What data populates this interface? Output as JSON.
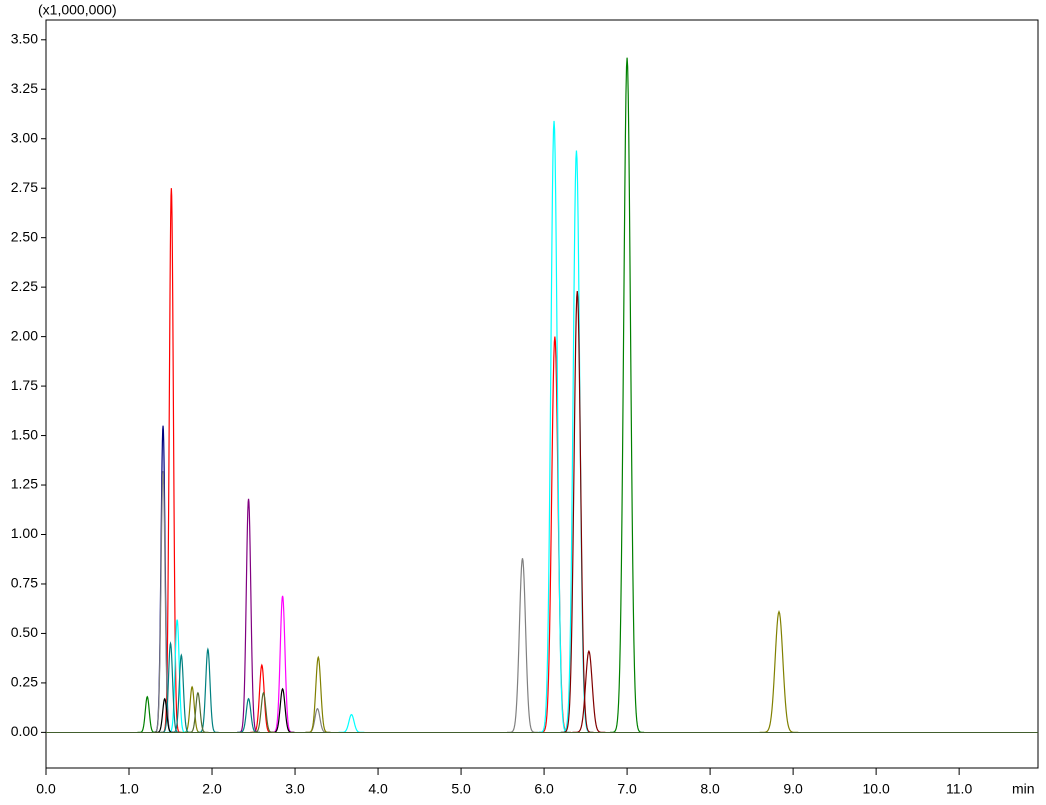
{
  "chart_data": {
    "type": "chromatogram",
    "y_multiplier_label": "(x1,000,000)",
    "x_label": "min",
    "xlim": [
      0,
      11.95
    ],
    "ylim": [
      -0.18,
      3.6
    ],
    "xticks": [
      {
        "value": 0,
        "label": "0.0"
      },
      {
        "value": 1,
        "label": "1.0"
      },
      {
        "value": 2,
        "label": "2.0"
      },
      {
        "value": 3,
        "label": "3.0"
      },
      {
        "value": 4,
        "label": "4.0"
      },
      {
        "value": 5,
        "label": "5.0"
      },
      {
        "value": 6,
        "label": "6.0"
      },
      {
        "value": 7,
        "label": "7.0"
      },
      {
        "value": 8,
        "label": "8.0"
      },
      {
        "value": 9,
        "label": "9.0"
      },
      {
        "value": 10,
        "label": "10.0"
      },
      {
        "value": 11,
        "label": "11.0"
      }
    ],
    "yticks": [
      {
        "value": 0,
        "label": "0.00"
      },
      {
        "value": 0.25,
        "label": "0.25"
      },
      {
        "value": 0.5,
        "label": "0.50"
      },
      {
        "value": 0.75,
        "label": "0.75"
      },
      {
        "value": 1,
        "label": "1.00"
      },
      {
        "value": 1.25,
        "label": "1.25"
      },
      {
        "value": 1.5,
        "label": "1.50"
      },
      {
        "value": 1.75,
        "label": "1.75"
      },
      {
        "value": 2,
        "label": "2.00"
      },
      {
        "value": 2.25,
        "label": "2.25"
      },
      {
        "value": 2.5,
        "label": "2.50"
      },
      {
        "value": 2.75,
        "label": "2.75"
      },
      {
        "value": 3,
        "label": "3.00"
      },
      {
        "value": 3.25,
        "label": "3.25"
      },
      {
        "value": 3.5,
        "label": "3.50"
      }
    ],
    "series": [
      {
        "color": "#ff0000",
        "x": [
          1.51,
          2.6,
          6.13
        ],
        "values": [
          2.75,
          0.34,
          2.0
        ]
      },
      {
        "color": "#000080",
        "x": [
          1.41
        ],
        "values": [
          1.55
        ]
      },
      {
        "color": "#808080",
        "x": [
          1.41,
          3.27,
          5.74
        ],
        "values": [
          1.32,
          0.12,
          0.88
        ]
      },
      {
        "color": "#800080",
        "x": [
          2.44
        ],
        "values": [
          1.18
        ]
      },
      {
        "color": "#ff00ff",
        "x": [
          2.85
        ],
        "values": [
          0.69
        ]
      },
      {
        "color": "#808000",
        "x": [
          1.76,
          3.28,
          8.83
        ],
        "values": [
          0.23,
          0.38,
          0.61
        ]
      },
      {
        "color": "#00ffff",
        "x": [
          1.58,
          3.68,
          6.12,
          6.39
        ],
        "values": [
          0.57,
          0.09,
          3.09,
          2.94
        ]
      },
      {
        "color": "#800000",
        "x": [
          6.4,
          6.54
        ],
        "values": [
          2.23,
          0.41
        ]
      },
      {
        "color": "#008000",
        "x": [
          1.22,
          7.0
        ],
        "values": [
          0.18,
          3.41
        ]
      },
      {
        "color": "#008080",
        "x": [
          1.5,
          1.63,
          1.95,
          2.44
        ],
        "values": [
          0.45,
          0.39,
          0.42,
          0.17
        ]
      },
      {
        "color": "#000000",
        "x": [
          1.43,
          2.85
        ],
        "values": [
          0.17,
          0.22
        ]
      },
      {
        "color": "#556b2f",
        "x": [
          1.83,
          2.62
        ],
        "values": [
          0.2,
          0.2
        ]
      }
    ]
  }
}
